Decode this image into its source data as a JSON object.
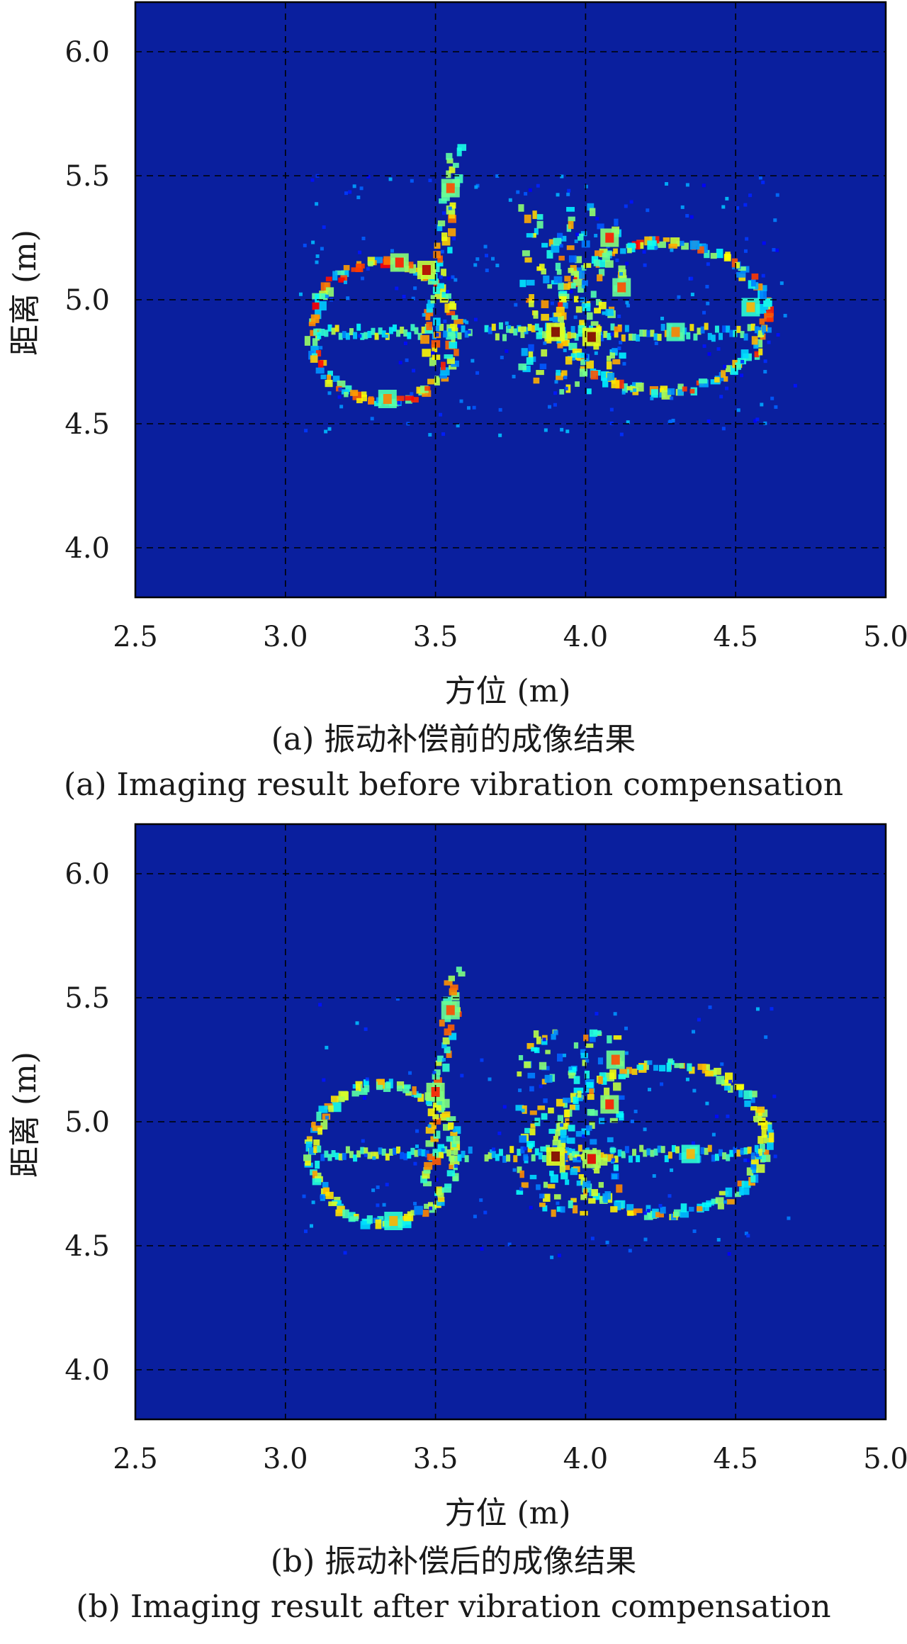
{
  "chart_data": [
    {
      "type": "heatmap",
      "panel": "a",
      "caption_cn": "(a) 振动补偿前的成像结果",
      "caption_en": "(a) Imaging result before vibration compensation",
      "xlabel": "方位 (m)",
      "ylabel": "距离 (m)",
      "xlim": [
        2.5,
        5.0
      ],
      "ylim": [
        3.8,
        6.2
      ],
      "xticks": [
        "2.5",
        "3.0",
        "3.5",
        "4.0",
        "4.5",
        "5.0"
      ],
      "yticks": [
        "4.0",
        "4.5",
        "5.0",
        "5.5",
        "6.0"
      ],
      "grid": true,
      "colormap": "jet",
      "background_color": "#0a1f9e",
      "noise_level": 0.55,
      "blobs": [
        {
          "x": 3.38,
          "y": 5.15,
          "i": 0.85
        },
        {
          "x": 3.47,
          "y": 5.12,
          "i": 0.95
        },
        {
          "x": 3.55,
          "y": 5.45,
          "i": 0.8
        },
        {
          "x": 3.34,
          "y": 4.6,
          "i": 0.75
        },
        {
          "x": 3.9,
          "y": 4.87,
          "i": 1.0
        },
        {
          "x": 4.02,
          "y": 4.85,
          "i": 1.0
        },
        {
          "x": 4.08,
          "y": 5.25,
          "i": 0.85
        },
        {
          "x": 4.12,
          "y": 5.05,
          "i": 0.8
        },
        {
          "x": 4.3,
          "y": 4.87,
          "i": 0.75
        },
        {
          "x": 4.55,
          "y": 4.97,
          "i": 0.7
        }
      ]
    },
    {
      "type": "heatmap",
      "panel": "b",
      "caption_cn": "(b) 振动补偿后的成像结果",
      "caption_en": "(b) Imaging result after vibration compensation",
      "xlabel": "方位 (m)",
      "ylabel": "距离 (m)",
      "xlim": [
        2.5,
        5.0
      ],
      "ylim": [
        3.8,
        6.2
      ],
      "xticks": [
        "2.5",
        "3.0",
        "3.5",
        "4.0",
        "4.5",
        "5.0"
      ],
      "yticks": [
        "4.0",
        "4.5",
        "5.0",
        "5.5",
        "6.0"
      ],
      "grid": true,
      "colormap": "jet",
      "background_color": "#0a1f9e",
      "noise_level": 0.3,
      "blobs": [
        {
          "x": 3.5,
          "y": 5.12,
          "i": 0.85
        },
        {
          "x": 3.55,
          "y": 5.45,
          "i": 0.8
        },
        {
          "x": 3.36,
          "y": 4.6,
          "i": 0.7
        },
        {
          "x": 3.9,
          "y": 4.86,
          "i": 1.0
        },
        {
          "x": 4.02,
          "y": 4.85,
          "i": 0.9
        },
        {
          "x": 4.08,
          "y": 5.07,
          "i": 0.85
        },
        {
          "x": 4.1,
          "y": 5.25,
          "i": 0.8
        },
        {
          "x": 4.35,
          "y": 4.87,
          "i": 0.7
        }
      ]
    }
  ]
}
